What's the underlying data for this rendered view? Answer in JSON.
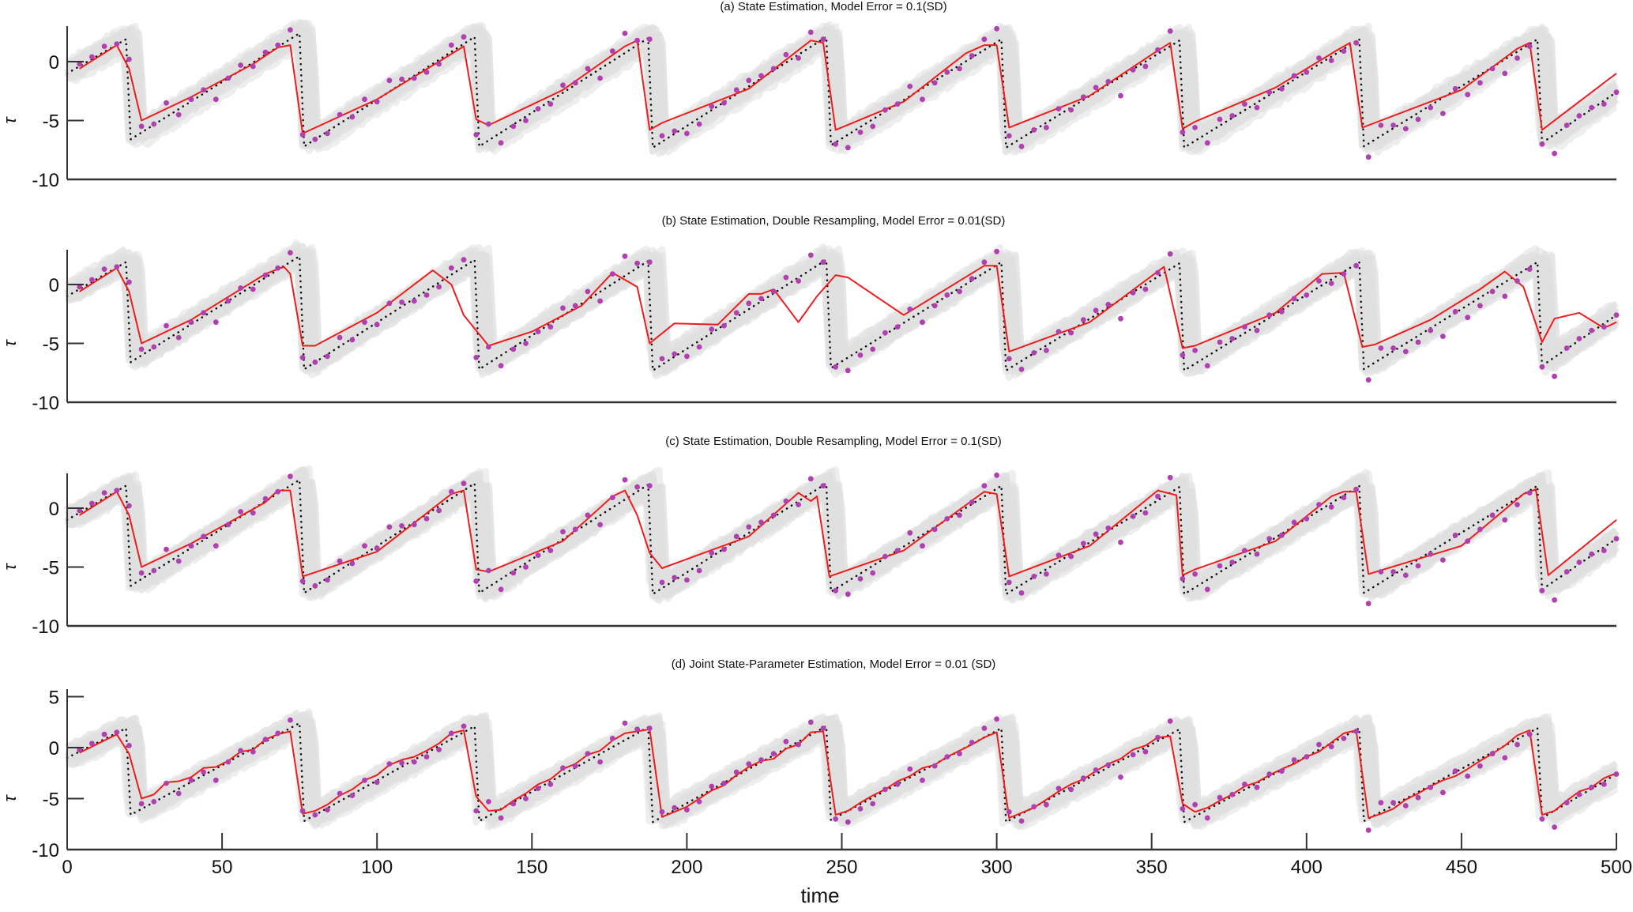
{
  "chart_data": {
    "type": "line",
    "shared_x": {
      "label": "time",
      "range": [
        0,
        500
      ],
      "ticks": [
        0,
        50,
        100,
        150,
        200,
        250,
        300,
        350,
        400,
        450,
        500
      ],
      "tick_labels": [
        "0",
        "50",
        "100",
        "150",
        "200",
        "250",
        "300",
        "350",
        "400",
        "450",
        "500"
      ]
    },
    "ylabel": "τ",
    "colors": {
      "ensemble": "#e0e0e0",
      "estimate": "#ee1c1c",
      "truth": "#111111",
      "observation": "#b040b0"
    },
    "truth": {
      "name": "true state (dotted)",
      "x": [
        0,
        19,
        20.5,
        75,
        76.5,
        131.5,
        133,
        187.5,
        189,
        245,
        246.5,
        301.5,
        303,
        359,
        360.5,
        417,
        418.5,
        474.5,
        476,
        500
      ],
      "values": [
        -1,
        1.9,
        -6.6,
        2.4,
        -7.2,
        2.1,
        -7.2,
        2.0,
        -7.3,
        2.1,
        -7.1,
        1.9,
        -7.3,
        1.8,
        -7.3,
        1.9,
        -7.2,
        1.9,
        -6.9,
        -2.6
      ]
    },
    "observations": {
      "name": "observations",
      "x": [
        4,
        8,
        12,
        16,
        20,
        24,
        28,
        32,
        36,
        40,
        44,
        48,
        52,
        56,
        60,
        64,
        68,
        72,
        76,
        80,
        84,
        88,
        92,
        96,
        100,
        104,
        108,
        112,
        116,
        120,
        124,
        128,
        132,
        136,
        140,
        144,
        148,
        152,
        156,
        160,
        164,
        168,
        172,
        176,
        180,
        184,
        188,
        192,
        196,
        200,
        204,
        208,
        212,
        216,
        220,
        224,
        228,
        232,
        236,
        240,
        244,
        248,
        252,
        256,
        260,
        264,
        268,
        272,
        276,
        280,
        284,
        288,
        292,
        296,
        300,
        304,
        308,
        312,
        316,
        320,
        324,
        328,
        332,
        336,
        340,
        344,
        348,
        352,
        356,
        360,
        364,
        368,
        372,
        376,
        380,
        384,
        388,
        392,
        396,
        400,
        404,
        408,
        412,
        416,
        420,
        424,
        428,
        432,
        436,
        440,
        444,
        448,
        452,
        456,
        460,
        464,
        468,
        472,
        476,
        480,
        484,
        488,
        492,
        496,
        500
      ],
      "values": [
        -0.2,
        0.4,
        1.3,
        1.5,
        0.2,
        -5.5,
        -5.3,
        -3.5,
        -4.5,
        -3.2,
        -2.4,
        -3.2,
        -1.4,
        -0.3,
        -0.4,
        0.8,
        1.4,
        2.7,
        -6.2,
        -6.6,
        -6.1,
        -4.5,
        -4.7,
        -3.2,
        -3.4,
        -1.6,
        -1.5,
        -1.4,
        -0.9,
        -0.2,
        1.4,
        2.1,
        -6.2,
        -5.3,
        -6.9,
        -5.5,
        -5.0,
        -4.0,
        -3.6,
        -2.0,
        -1.8,
        -0.6,
        -1.4,
        0.9,
        2.4,
        1.8,
        1.9,
        -6.3,
        -5.9,
        -6.1,
        -5.3,
        -3.8,
        -3.5,
        -2.4,
        -1.6,
        -1.2,
        -0.6,
        0.6,
        0.3,
        2.5,
        1.9,
        -7.0,
        -7.3,
        -6.0,
        -5.5,
        -4.1,
        -3.6,
        -2.1,
        -3.2,
        -1.8,
        -0.9,
        -0.6,
        0.5,
        1.9,
        2.8,
        -6.3,
        -7.2,
        -5.8,
        -5.6,
        -4.0,
        -4.1,
        -3.0,
        -2.2,
        -1.7,
        -2.9,
        -0.7,
        -0.4,
        1.0,
        2.6,
        -6.0,
        -5.6,
        -6.9,
        -4.9,
        -4.6,
        -3.6,
        -3.9,
        -2.6,
        -2.3,
        -1.2,
        -0.9,
        0.3,
        0.1,
        0.9,
        1.6,
        -8.1,
        -5.4,
        -5.4,
        -5.7,
        -4.9,
        -3.9,
        -4.4,
        -2.3,
        -2.8,
        -1.8,
        -0.6,
        -1.0,
        0.3,
        1.3,
        -7.0,
        -7.8,
        -5.4,
        -4.6,
        -3.9,
        -3.6,
        -2.6
      ]
    },
    "panels": [
      {
        "id": "a",
        "title": "(a) State Estimation, Model Error = 0.1(SD)",
        "ylim": [
          -10,
          3
        ],
        "yticks": [
          -10,
          -5,
          0
        ],
        "ytick_labels": [
          "-10",
          "-5",
          "0"
        ],
        "estimate": {
          "name": "ensemble mean (red)",
          "x": [
            4,
            16,
            20,
            24,
            40,
            60,
            68,
            72,
            76,
            100,
            120,
            128,
            132,
            136,
            160,
            180,
            184,
            188,
            192,
            220,
            240,
            244,
            248,
            270,
            290,
            296,
            300,
            304,
            330,
            350,
            356,
            360,
            364,
            390,
            410,
            414,
            418,
            422,
            450,
            468,
            472,
            476,
            500
          ],
          "values": [
            -0.6,
            1.4,
            -0.6,
            -5.0,
            -3.0,
            -0.2,
            1.2,
            1.4,
            -6.1,
            -3.2,
            0.0,
            1.3,
            -4.9,
            -5.4,
            -2.4,
            1.3,
            1.8,
            -5.8,
            -5.2,
            -2.3,
            1.8,
            1.6,
            -5.8,
            -3.4,
            0.7,
            1.4,
            1.4,
            -5.6,
            -2.9,
            0.6,
            1.6,
            -5.7,
            -5.1,
            -2.2,
            1.0,
            1.6,
            -5.6,
            -5.2,
            -2.4,
            1.1,
            1.6,
            -5.8,
            -1.0
          ]
        }
      },
      {
        "id": "b",
        "title": "(b) State Estimation, Double Resampling, Model Error = 0.01(SD)",
        "ylim": [
          -10,
          3
        ],
        "yticks": [
          -10,
          -5,
          0
        ],
        "ytick_labels": [
          "-10",
          "-5",
          "0"
        ],
        "estimate": {
          "name": "ensemble mean (red)",
          "x": [
            4,
            16,
            20,
            24,
            40,
            64,
            70,
            72,
            76,
            80,
            100,
            118,
            124,
            128,
            136,
            150,
            166,
            176,
            184,
            188,
            196,
            210,
            220,
            224,
            228,
            236,
            242,
            248,
            252,
            270,
            296,
            300,
            304,
            330,
            354,
            360,
            364,
            390,
            405,
            412,
            418,
            422,
            440,
            456,
            464,
            470,
            476,
            480,
            488,
            496,
            500
          ],
          "values": [
            -0.6,
            1.4,
            -0.6,
            -5.0,
            -3.0,
            0.9,
            1.5,
            0.9,
            -5.2,
            -5.2,
            -2.4,
            1.2,
            0.0,
            -2.6,
            -5.2,
            -4.0,
            -1.8,
            1.0,
            -0.2,
            -5.0,
            -3.3,
            -3.4,
            -0.8,
            -0.8,
            -0.4,
            -3.2,
            -1.0,
            0.8,
            0.6,
            -2.6,
            1.6,
            1.6,
            -5.7,
            -3.2,
            1.5,
            -5.4,
            -5.2,
            -2.4,
            0.9,
            1.0,
            -5.3,
            -5.1,
            -3.0,
            -0.4,
            1.1,
            -0.2,
            -4.9,
            -2.9,
            -2.4,
            -3.7,
            -3.2
          ]
        }
      },
      {
        "id": "c",
        "title": "(c) State Estimation, Double Resampling, Model Error = 0.1(SD)",
        "ylim": [
          -10,
          3
        ],
        "yticks": [
          -10,
          -5,
          0
        ],
        "ytick_labels": [
          "-10",
          "-5",
          "0"
        ],
        "estimate": {
          "name": "ensemble mean (red)",
          "x": [
            4,
            16,
            20,
            24,
            40,
            64,
            68,
            72,
            76,
            100,
            124,
            128,
            132,
            136,
            160,
            176,
            180,
            184,
            188,
            192,
            220,
            236,
            240,
            242,
            246,
            270,
            296,
            300,
            304,
            330,
            352,
            358,
            360,
            364,
            390,
            408,
            412,
            416,
            420,
            450,
            470,
            474,
            478,
            500
          ],
          "values": [
            -0.6,
            1.4,
            -0.6,
            -5.0,
            -3.0,
            0.5,
            1.5,
            1.5,
            -5.8,
            -3.7,
            1.2,
            1.5,
            -5.2,
            -5.4,
            -2.8,
            1.0,
            1.5,
            -0.6,
            -3.8,
            -5.1,
            -2.4,
            1.3,
            0.6,
            1.0,
            -5.8,
            -3.6,
            1.4,
            1.2,
            -5.8,
            -3.2,
            1.5,
            1.1,
            -5.7,
            -5.2,
            -2.8,
            1.0,
            1.4,
            1.4,
            -5.6,
            -3.2,
            1.2,
            1.6,
            -5.7,
            -1.0
          ]
        }
      },
      {
        "id": "d",
        "title": "(d) Joint State-Parameter Estimation, Model Error = 0.01 (SD)",
        "ylim": [
          -10,
          5
        ],
        "yticks": [
          -10,
          -5,
          0,
          5
        ],
        "ytick_labels": [
          "-10",
          "-5",
          "0",
          "5"
        ],
        "estimate": {
          "name": "ensemble mean (red)",
          "x": [
            4,
            16,
            20,
            24,
            28,
            32,
            36,
            40,
            44,
            48,
            52,
            56,
            60,
            64,
            68,
            72,
            76,
            80,
            84,
            88,
            92,
            96,
            100,
            104,
            108,
            112,
            116,
            120,
            124,
            128,
            132,
            136,
            140,
            144,
            148,
            152,
            156,
            160,
            164,
            168,
            172,
            176,
            180,
            184,
            188,
            192,
            196,
            200,
            204,
            208,
            212,
            216,
            220,
            224,
            228,
            232,
            236,
            240,
            244,
            248,
            252,
            256,
            260,
            264,
            268,
            272,
            276,
            280,
            284,
            288,
            292,
            296,
            300,
            304,
            308,
            312,
            316,
            320,
            324,
            328,
            332,
            336,
            340,
            344,
            348,
            352,
            356,
            360,
            364,
            368,
            372,
            376,
            380,
            384,
            388,
            392,
            396,
            400,
            404,
            408,
            412,
            416,
            420,
            424,
            428,
            432,
            436,
            440,
            444,
            448,
            452,
            456,
            460,
            464,
            468,
            472,
            476,
            480,
            484,
            488,
            492,
            496,
            500
          ],
          "values": [
            -0.5,
            1.3,
            -0.6,
            -5.0,
            -4.6,
            -3.4,
            -3.3,
            -2.9,
            -2.0,
            -1.9,
            -1.3,
            -0.4,
            -0.2,
            0.8,
            1.3,
            1.6,
            -6.5,
            -6.2,
            -5.6,
            -4.7,
            -4.1,
            -3.2,
            -2.7,
            -1.7,
            -1.2,
            -0.9,
            -0.3,
            0.4,
            1.4,
            1.7,
            -4.8,
            -6.2,
            -6.1,
            -5.2,
            -4.5,
            -3.6,
            -3.1,
            -2.1,
            -1.6,
            -0.7,
            -0.3,
            0.7,
            1.4,
            1.6,
            1.8,
            -6.8,
            -6.3,
            -5.8,
            -5.0,
            -4.2,
            -3.7,
            -2.7,
            -1.9,
            -1.3,
            -1.1,
            -0.1,
            0.3,
            1.5,
            1.6,
            -6.6,
            -6.2,
            -5.4,
            -4.7,
            -4.1,
            -3.3,
            -2.8,
            -2.0,
            -1.7,
            -0.9,
            -0.3,
            0.3,
            1.0,
            1.5,
            -6.9,
            -6.4,
            -5.9,
            -5.1,
            -4.3,
            -3.6,
            -3.1,
            -2.3,
            -1.6,
            -1.1,
            -0.2,
            0.2,
            1.0,
            1.1,
            -5.5,
            -6.3,
            -5.9,
            -5.2,
            -4.6,
            -3.8,
            -3.4,
            -2.7,
            -2.1,
            -1.6,
            -0.9,
            -0.4,
            0.5,
            1.4,
            1.7,
            -6.9,
            -6.5,
            -6.0,
            -5.1,
            -4.5,
            -3.8,
            -3.2,
            -2.8,
            -2.1,
            -1.3,
            -0.6,
            0.2,
            1.2,
            1.7,
            -6.6,
            -6.2,
            -5.2,
            -4.3,
            -3.9,
            -3.0,
            -2.5
          ]
        }
      }
    ]
  }
}
